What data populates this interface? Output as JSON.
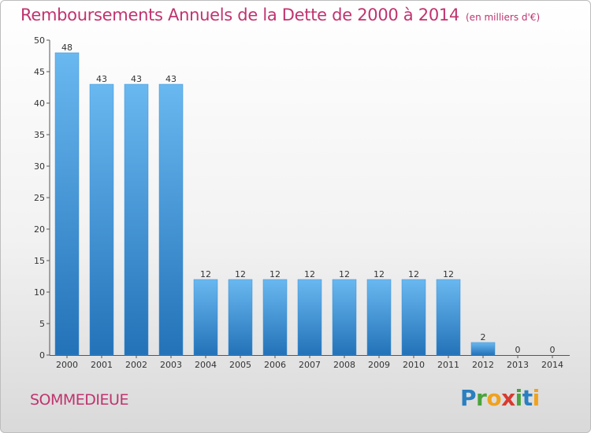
{
  "chart_data": {
    "type": "bar",
    "title": "Remboursements Annuels de la Dette de 2000 à 2014",
    "subtitle": "(en milliers d'€)",
    "categories": [
      "2000",
      "2001",
      "2002",
      "2003",
      "2004",
      "2005",
      "2006",
      "2007",
      "2008",
      "2009",
      "2010",
      "2011",
      "2012",
      "2013",
      "2014"
    ],
    "values": [
      48,
      43,
      43,
      43,
      12,
      12,
      12,
      12,
      12,
      12,
      12,
      12,
      2,
      0,
      0
    ],
    "ylim": [
      0,
      50
    ],
    "yticks": [
      0,
      5,
      10,
      15,
      20,
      25,
      30,
      35,
      40,
      45,
      50
    ],
    "grid": false,
    "bar_color": "#3a8fd6",
    "bar_color_light": "#6ab8f0",
    "bar_color_dark": "#2372b8"
  },
  "footer": {
    "commune": "SOMMEDIEUE",
    "logo": {
      "p": "P",
      "r": "r",
      "o": "o",
      "x": "x",
      "i": "i",
      "t": "t",
      "i2": "i"
    }
  }
}
